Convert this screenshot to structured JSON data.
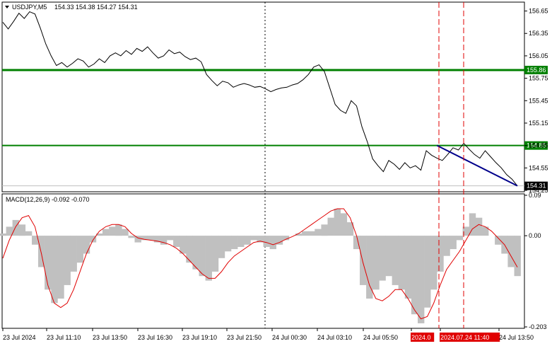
{
  "header": {
    "symbol": "USDJPY,M5",
    "ohlc": "154.33 154.38 154.27 154.31"
  },
  "macd_header": "MACD(12,26,9) -0.092 -0.070",
  "colors": {
    "price_line": "#000000",
    "support_resistance": "#008000",
    "trend_line": "#00008b",
    "signal_line": "#e00000",
    "histogram": "#c0c0c0",
    "marker": "#e00000",
    "current_price_bg": "#000000"
  },
  "chart_data": [
    {
      "type": "line",
      "title": "USDJPY,M5",
      "ylim": [
        154.25,
        156.75
      ],
      "y_ticks": [
        "156.65",
        "156.35",
        "156.05",
        "155.75",
        "155.45",
        "155.15",
        "154.85",
        "154.55",
        "154.25"
      ],
      "series": [
        {
          "name": "USDJPY",
          "values": [
            156.5,
            156.41,
            156.51,
            156.62,
            156.55,
            156.64,
            156.61,
            156.42,
            156.21,
            156.05,
            155.92,
            155.96,
            155.9,
            155.95,
            156.01,
            155.98,
            155.9,
            155.94,
            156.01,
            155.96,
            156.05,
            156.09,
            156.05,
            156.12,
            156.07,
            156.15,
            156.11,
            156.17,
            156.09,
            156.02,
            156.05,
            156.13,
            156.08,
            156.1,
            156.04,
            156.0,
            156.02,
            155.97,
            155.8,
            155.72,
            155.65,
            155.71,
            155.69,
            155.63,
            155.66,
            155.68,
            155.66,
            155.63,
            155.64,
            155.61,
            155.57,
            155.6,
            155.62,
            155.63,
            155.66,
            155.68,
            155.73,
            155.8,
            155.9,
            155.93,
            155.84,
            155.62,
            155.4,
            155.32,
            155.28,
            155.45,
            155.38,
            155.1,
            154.9,
            154.67,
            154.58,
            154.5,
            154.65,
            154.6,
            154.53,
            154.62,
            154.55,
            154.58,
            154.52,
            154.78,
            154.72,
            154.68,
            154.65,
            154.73,
            154.82,
            154.79,
            154.88,
            154.8,
            154.73,
            154.68,
            154.78,
            154.7,
            154.62,
            154.55,
            154.46,
            154.4,
            154.31
          ]
        }
      ],
      "horizontal_levels": [
        155.86,
        154.85
      ],
      "current_price": "154.31",
      "level_labels": [
        "155.86",
        "154.85"
      ],
      "trend_line": {
        "from": 154.85,
        "to": 154.31
      }
    },
    {
      "type": "bar",
      "title": "MACD(12,26,9) -0.092 -0.070",
      "ylim": [
        -0.203,
        0.09
      ],
      "y_ticks": [
        "0.09",
        "0.00",
        "-0.203"
      ],
      "series": [
        {
          "name": "MACD",
          "values": [
            0.005,
            0.02,
            0.035,
            0.025,
            0.01,
            -0.02,
            -0.07,
            -0.12,
            -0.15,
            -0.14,
            -0.11,
            -0.08,
            -0.06,
            -0.04,
            -0.015,
            0.005,
            0.015,
            0.02,
            0.025,
            0.015,
            -0.005,
            -0.015,
            -0.01,
            -0.01,
            -0.015,
            -0.02,
            -0.01,
            -0.025,
            -0.04,
            -0.06,
            -0.075,
            -0.09,
            -0.1,
            -0.08,
            -0.05,
            -0.035,
            -0.03,
            -0.025,
            -0.02,
            -0.01,
            -0.015,
            -0.025,
            -0.03,
            -0.02,
            -0.01,
            0.0,
            0.005,
            0.01,
            0.01,
            0.015,
            0.025,
            0.04,
            0.06,
            0.05,
            0.03,
            -0.03,
            -0.11,
            -0.14,
            -0.12,
            -0.1,
            -0.09,
            -0.11,
            -0.12,
            -0.14,
            -0.175,
            -0.195,
            -0.16,
            -0.12,
            -0.08,
            -0.045,
            -0.03,
            -0.01,
            0.02,
            0.05,
            0.04,
            0.02,
            0.0,
            -0.02,
            -0.04,
            -0.07,
            -0.09
          ]
        },
        {
          "name": "Signal",
          "values": [
            -0.05,
            -0.01,
            0.02,
            0.04,
            0.045,
            0.02,
            -0.04,
            -0.11,
            -0.15,
            -0.16,
            -0.15,
            -0.12,
            -0.08,
            -0.04,
            -0.01,
            0.01,
            0.02,
            0.025,
            0.025,
            0.02,
            0.005,
            -0.005,
            -0.008,
            -0.01,
            -0.012,
            -0.015,
            -0.02,
            -0.028,
            -0.04,
            -0.055,
            -0.07,
            -0.085,
            -0.095,
            -0.095,
            -0.08,
            -0.06,
            -0.045,
            -0.035,
            -0.025,
            -0.015,
            -0.012,
            -0.015,
            -0.02,
            -0.015,
            -0.008,
            -0.002,
            0.005,
            0.015,
            0.025,
            0.035,
            0.045,
            0.055,
            0.06,
            0.06,
            0.04,
            0.0,
            -0.06,
            -0.11,
            -0.14,
            -0.145,
            -0.135,
            -0.12,
            -0.12,
            -0.14,
            -0.165,
            -0.185,
            -0.18,
            -0.15,
            -0.11,
            -0.075,
            -0.055,
            -0.035,
            -0.01,
            0.015,
            0.025,
            0.02,
            0.01,
            -0.005,
            -0.02,
            -0.045,
            -0.07
          ]
        }
      ]
    }
  ],
  "x_ticks": [
    "23 Jul 2024",
    "23 Jul 11:10",
    "23 Jul 13:50",
    "23 Jul 16:30",
    "23 Jul 19:10",
    "23 Jul 21:50",
    "24 Jul 00:30",
    "24 Jul 03:10",
    "24 Jul 05:50",
    "2024.0",
    "2024.07.24 11:40",
    "24 Jul 13:50"
  ],
  "markers": [
    "2024.0",
    "2024.07.24 11:40"
  ]
}
